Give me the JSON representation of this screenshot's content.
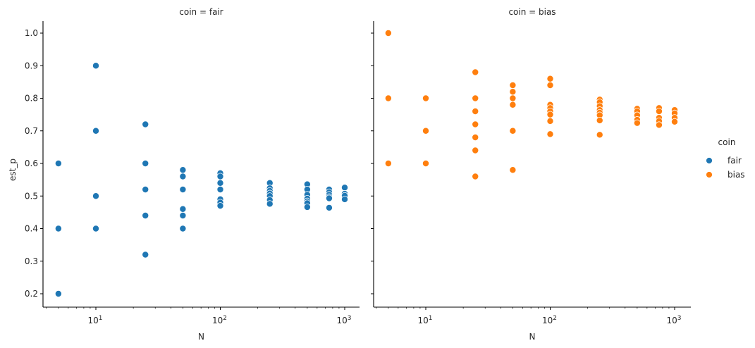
{
  "chart_data": [
    {
      "type": "scatter",
      "title": "coin = fair",
      "xlabel": "N",
      "ylabel": "est_p",
      "xscale": "log",
      "xlim": [
        4,
        1300
      ],
      "ylim": [
        0.16,
        1.04
      ],
      "xticks": [
        {
          "value": 10,
          "label": "10",
          "exp": "1"
        },
        {
          "value": 100,
          "label": "10",
          "exp": "2"
        },
        {
          "value": 1000,
          "label": "10",
          "exp": "3"
        }
      ],
      "yticks": [
        "0.2",
        "0.3",
        "0.4",
        "0.5",
        "0.6",
        "0.7",
        "0.8",
        "0.9",
        "1.0"
      ],
      "grid": false,
      "color": "#1f77b4",
      "series": [
        {
          "name": "fair",
          "points": [
            [
              5,
              0.6
            ],
            [
              5,
              0.4
            ],
            [
              5,
              0.2
            ],
            [
              10,
              0.9
            ],
            [
              10,
              0.7
            ],
            [
              10,
              0.5
            ],
            [
              10,
              0.4
            ],
            [
              25,
              0.72
            ],
            [
              25,
              0.6
            ],
            [
              25,
              0.52
            ],
            [
              25,
              0.44
            ],
            [
              25,
              0.32
            ],
            [
              50,
              0.58
            ],
            [
              50,
              0.56
            ],
            [
              50,
              0.52
            ],
            [
              50,
              0.46
            ],
            [
              50,
              0.44
            ],
            [
              50,
              0.4
            ],
            [
              100,
              0.57
            ],
            [
              100,
              0.56
            ],
            [
              100,
              0.54
            ],
            [
              100,
              0.52
            ],
            [
              100,
              0.49
            ],
            [
              100,
              0.48
            ],
            [
              100,
              0.47
            ],
            [
              250,
              0.54
            ],
            [
              250,
              0.524
            ],
            [
              250,
              0.516
            ],
            [
              250,
              0.508
            ],
            [
              250,
              0.5
            ],
            [
              250,
              0.488
            ],
            [
              250,
              0.476
            ],
            [
              500,
              0.536
            ],
            [
              500,
              0.52
            ],
            [
              500,
              0.504
            ],
            [
              500,
              0.492
            ],
            [
              500,
              0.484
            ],
            [
              500,
              0.478
            ],
            [
              500,
              0.466
            ],
            [
              750,
              0.52
            ],
            [
              750,
              0.512
            ],
            [
              750,
              0.504
            ],
            [
              750,
              0.497
            ],
            [
              750,
              0.493
            ],
            [
              750,
              0.464
            ],
            [
              1000,
              0.526
            ],
            [
              1000,
              0.507
            ],
            [
              1000,
              0.501
            ],
            [
              1000,
              0.49
            ]
          ]
        }
      ]
    },
    {
      "type": "scatter",
      "title": "coin = bias",
      "xlabel": "N",
      "ylabel": "",
      "xscale": "log",
      "xlim": [
        4,
        1300
      ],
      "ylim": [
        0.16,
        1.04
      ],
      "xticks": [
        {
          "value": 10,
          "label": "10",
          "exp": "1"
        },
        {
          "value": 100,
          "label": "10",
          "exp": "2"
        },
        {
          "value": 1000,
          "label": "10",
          "exp": "3"
        }
      ],
      "grid": false,
      "color": "#ff7f0e",
      "series": [
        {
          "name": "bias",
          "points": [
            [
              5,
              1.0
            ],
            [
              5,
              0.8
            ],
            [
              5,
              0.6
            ],
            [
              10,
              0.8
            ],
            [
              10,
              0.7
            ],
            [
              10,
              0.6
            ],
            [
              25,
              0.88
            ],
            [
              25,
              0.8
            ],
            [
              25,
              0.76
            ],
            [
              25,
              0.72
            ],
            [
              25,
              0.68
            ],
            [
              25,
              0.64
            ],
            [
              25,
              0.56
            ],
            [
              50,
              0.84
            ],
            [
              50,
              0.82
            ],
            [
              50,
              0.8
            ],
            [
              50,
              0.78
            ],
            [
              50,
              0.7
            ],
            [
              50,
              0.58
            ],
            [
              100,
              0.86
            ],
            [
              100,
              0.84
            ],
            [
              100,
              0.78
            ],
            [
              100,
              0.77
            ],
            [
              100,
              0.76
            ],
            [
              100,
              0.75
            ],
            [
              100,
              0.73
            ],
            [
              100,
              0.69
            ],
            [
              250,
              0.796
            ],
            [
              250,
              0.788
            ],
            [
              250,
              0.776
            ],
            [
              250,
              0.764
            ],
            [
              250,
              0.756
            ],
            [
              250,
              0.748
            ],
            [
              250,
              0.732
            ],
            [
              250,
              0.688
            ],
            [
              500,
              0.768
            ],
            [
              500,
              0.76
            ],
            [
              500,
              0.748
            ],
            [
              500,
              0.734
            ],
            [
              500,
              0.724
            ],
            [
              750,
              0.77
            ],
            [
              750,
              0.76
            ],
            [
              750,
              0.74
            ],
            [
              750,
              0.73
            ],
            [
              750,
              0.718
            ],
            [
              1000,
              0.764
            ],
            [
              1000,
              0.754
            ],
            [
              1000,
              0.74
            ],
            [
              1000,
              0.728
            ]
          ]
        }
      ]
    }
  ],
  "legend": {
    "title": "coin",
    "entries": [
      {
        "label": "fair",
        "color": "#1f77b4"
      },
      {
        "label": "bias",
        "color": "#ff7f0e"
      }
    ]
  }
}
